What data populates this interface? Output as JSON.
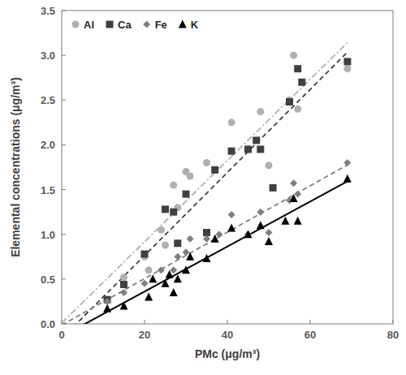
{
  "chart_data": {
    "type": "scatter",
    "x_label": "PMc (μg/m³)",
    "y_label": "Elemental concentrations  (μg/m³)",
    "xlim": [
      0,
      80
    ],
    "xticks": [
      0,
      20,
      40,
      60,
      80
    ],
    "ylim": [
      0,
      3.5
    ],
    "yticks": [
      {
        "value": 0,
        "label": "0.0"
      },
      {
        "value": 0.5,
        "label": "0.5"
      },
      {
        "value": 1,
        "label": "1.0"
      },
      {
        "value": 1.5,
        "label": "1.5"
      },
      {
        "value": 2,
        "label": "2.0"
      },
      {
        "value": 2.5,
        "label": "2.5"
      },
      {
        "value": 3,
        "label": "3.0"
      },
      {
        "value": 3.5,
        "label": "3.5"
      }
    ],
    "grid": false,
    "legend": "top-left",
    "series": [
      {
        "name": "Al",
        "color": "#b0b0b0",
        "marker": "circle",
        "line_style": "dashdot",
        "x": [
          15,
          20,
          21,
          24,
          25,
          27,
          28,
          30,
          31,
          35,
          41,
          45,
          48,
          50,
          55,
          56,
          57,
          69
        ],
        "values": [
          0.52,
          0.75,
          0.6,
          1.05,
          0.88,
          1.55,
          1.3,
          1.7,
          1.65,
          1.8,
          2.25,
          1.95,
          2.37,
          1.77,
          2.5,
          3.0,
          2.4,
          2.85
        ]
      },
      {
        "name": "Ca",
        "color": "#404040",
        "marker": "square",
        "line_style": "dashed",
        "x": [
          11,
          15,
          20,
          25,
          27,
          28,
          30,
          35,
          37,
          41,
          45,
          47,
          48,
          51,
          55,
          57,
          58,
          69
        ],
        "values": [
          0.27,
          0.44,
          0.78,
          1.28,
          1.25,
          0.9,
          1.45,
          1.02,
          1.72,
          1.93,
          1.95,
          2.05,
          1.95,
          1.52,
          2.48,
          2.85,
          2.7,
          2.93
        ]
      },
      {
        "name": "Fe",
        "color": "#7f7f7f",
        "marker": "diamond",
        "line_style": "dashed",
        "x": [
          11,
          15,
          20,
          24,
          27,
          28,
          30,
          31,
          35,
          38,
          41,
          45,
          48,
          50,
          55,
          56,
          57,
          69
        ],
        "values": [
          0.25,
          0.35,
          0.45,
          0.6,
          0.6,
          0.75,
          0.8,
          0.95,
          0.95,
          1.0,
          1.22,
          1.0,
          1.25,
          1.02,
          1.38,
          1.57,
          1.45,
          1.8
        ]
      },
      {
        "name": "K",
        "color": "#000000",
        "marker": "triangle",
        "line_style": "solid",
        "x": [
          11,
          15,
          21,
          22,
          25,
          26,
          27,
          28,
          30,
          31,
          35,
          37,
          41,
          45,
          48,
          50,
          54,
          56,
          57,
          69
        ],
        "values": [
          0.17,
          0.2,
          0.3,
          0.5,
          0.45,
          0.55,
          0.35,
          0.5,
          0.6,
          0.75,
          0.73,
          0.95,
          1.07,
          1.0,
          1.1,
          0.92,
          1.15,
          1.4,
          1.15,
          1.62
        ]
      }
    ]
  }
}
